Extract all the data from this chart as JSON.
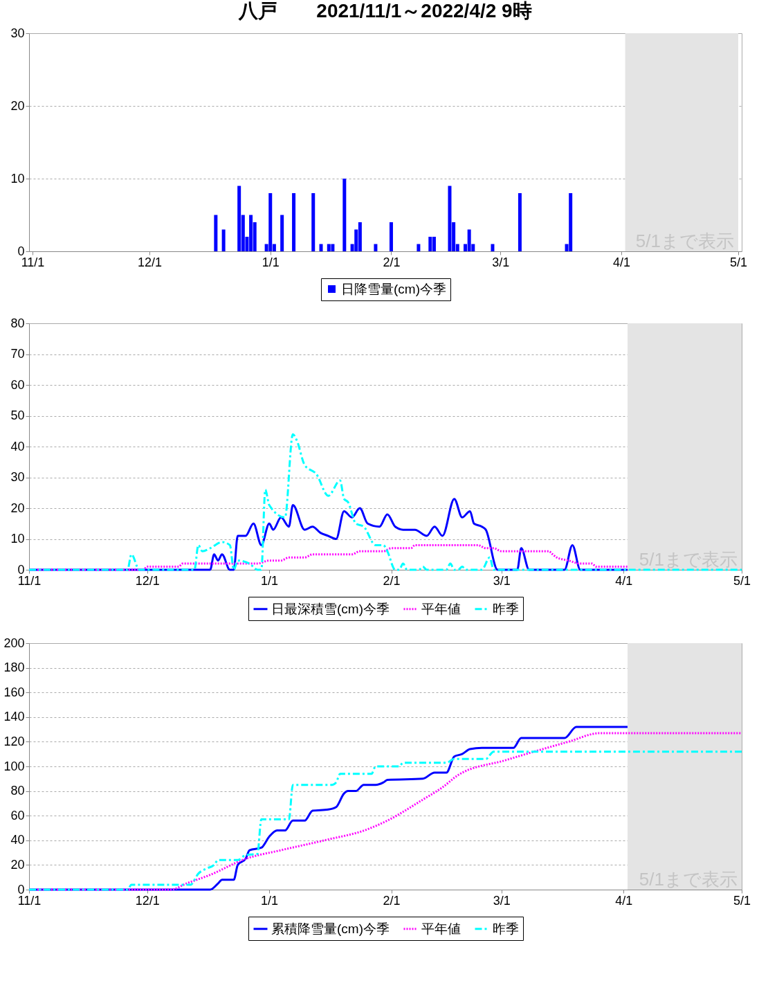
{
  "chart_data": [
    {
      "type": "bar",
      "title": "八戸　　2021/11/1～2022/4/2 9時",
      "xlim": [
        "2021-11-01",
        "2022-05-01"
      ],
      "xticks": [
        {
          "value": "2021-11-01",
          "label": "11/1"
        },
        {
          "value": "2021-12-01",
          "label": "12/1"
        },
        {
          "value": "2022-01-01",
          "label": "1/1"
        },
        {
          "value": "2022-02-01",
          "label": "2/1"
        },
        {
          "value": "2022-03-01",
          "label": "3/1"
        },
        {
          "value": "2022-04-01",
          "label": "4/1"
        },
        {
          "value": "2022-05-01",
          "label": "5/1"
        }
      ],
      "ylim": [
        0,
        30
      ],
      "yticks": [
        0,
        10,
        20,
        30
      ],
      "grid": "y",
      "legend": "bottom",
      "bands": [
        {
          "axis": "x",
          "from": "2022-04-02",
          "to": "2022-05-01",
          "label": "5/1まで表示",
          "color": "#e4e4e4"
        }
      ],
      "series": [
        {
          "name": "日降雪量(cm)今季",
          "color": "#0000ff",
          "x": [
            "2021-12-18",
            "2021-12-20",
            "2021-12-24",
            "2021-12-25",
            "2021-12-26",
            "2021-12-27",
            "2021-12-28",
            "2021-12-31",
            "2022-01-01",
            "2022-01-02",
            "2022-01-04",
            "2022-01-07",
            "2022-01-12",
            "2022-01-14",
            "2022-01-16",
            "2022-01-17",
            "2022-01-20",
            "2022-01-22",
            "2022-01-23",
            "2022-01-24",
            "2022-01-28",
            "2022-02-01",
            "2022-02-08",
            "2022-02-11",
            "2022-02-12",
            "2022-02-16",
            "2022-02-17",
            "2022-02-18",
            "2022-02-20",
            "2022-02-21",
            "2022-02-22",
            "2022-02-27",
            "2022-03-06",
            "2022-03-18",
            "2022-03-19"
          ],
          "values": [
            5,
            3,
            9,
            5,
            2,
            5,
            4,
            1,
            8,
            1,
            5,
            8,
            8,
            1,
            1,
            1,
            10,
            1,
            3,
            4,
            1,
            4,
            1,
            2,
            2,
            9,
            4,
            1,
            1,
            3,
            1,
            1,
            8,
            1,
            8
          ]
        }
      ]
    },
    {
      "type": "line",
      "xlim": [
        "2021-11-01",
        "2022-05-01"
      ],
      "xticks": [
        {
          "value": "2021-11-01",
          "label": "11/1"
        },
        {
          "value": "2021-12-01",
          "label": "12/1"
        },
        {
          "value": "2022-01-01",
          "label": "1/1"
        },
        {
          "value": "2022-02-01",
          "label": "2/1"
        },
        {
          "value": "2022-03-01",
          "label": "3/1"
        },
        {
          "value": "2022-04-01",
          "label": "4/1"
        },
        {
          "value": "2022-05-01",
          "label": "5/1"
        }
      ],
      "ylim": [
        0,
        80
      ],
      "yticks": [
        0,
        10,
        20,
        30,
        40,
        50,
        60,
        70,
        80
      ],
      "grid": "y",
      "legend": "bottom",
      "bands": [
        {
          "axis": "x",
          "from": "2022-04-02",
          "to": "2022-05-01",
          "label": "5/1まで表示",
          "color": "#e4e4e4"
        }
      ],
      "series": [
        {
          "name": "日最深積雪(cm)今季",
          "color": "#0000ff",
          "line_style": "solid",
          "x": [
            "2021-11-01",
            "2021-12-17",
            "2021-12-18",
            "2021-12-19",
            "2021-12-20",
            "2021-12-22",
            "2021-12-23",
            "2021-12-24",
            "2021-12-26",
            "2021-12-28",
            "2021-12-30",
            "2022-01-01",
            "2022-01-02",
            "2022-01-04",
            "2022-01-06",
            "2022-01-07",
            "2022-01-10",
            "2022-01-12",
            "2022-01-14",
            "2022-01-16",
            "2022-01-18",
            "2022-01-20",
            "2022-01-22",
            "2022-01-24",
            "2022-01-26",
            "2022-01-29",
            "2022-01-31",
            "2022-02-02",
            "2022-02-04",
            "2022-02-07",
            "2022-02-10",
            "2022-02-12",
            "2022-02-14",
            "2022-02-17",
            "2022-02-19",
            "2022-02-21",
            "2022-02-22",
            "2022-02-24",
            "2022-02-25",
            "2022-02-28",
            "2022-03-05",
            "2022-03-06",
            "2022-03-08",
            "2022-03-17",
            "2022-03-19",
            "2022-03-21",
            "2022-04-02"
          ],
          "values": [
            0,
            0,
            5,
            3,
            5,
            0,
            0,
            11,
            11,
            15,
            8,
            15,
            13,
            17,
            14,
            21,
            13,
            14,
            12,
            11,
            10,
            19,
            17,
            20,
            15,
            14,
            18,
            14,
            13,
            13,
            11,
            14,
            11,
            23,
            17,
            19,
            15,
            14,
            13,
            0,
            0,
            7,
            0,
            0,
            8,
            0,
            0
          ]
        },
        {
          "name": "平年値",
          "color": "#ff00ff",
          "line_style": "dotted",
          "x": [
            "2021-11-01",
            "2021-11-30",
            "2021-12-01",
            "2021-12-09",
            "2021-12-10",
            "2021-12-29",
            "2022-01-01",
            "2022-01-04",
            "2022-01-06",
            "2022-01-10",
            "2022-01-12",
            "2022-01-22",
            "2022-01-24",
            "2022-01-30",
            "2022-02-01",
            "2022-02-06",
            "2022-02-07",
            "2022-02-23",
            "2022-02-25",
            "2022-02-27",
            "2022-03-01",
            "2022-03-13",
            "2022-03-14",
            "2022-03-15",
            "2022-03-18",
            "2022-03-21",
            "2022-03-24",
            "2022-03-25",
            "2022-04-02"
          ],
          "values": [
            0,
            0,
            1,
            1,
            2,
            2,
            3,
            3,
            4,
            4,
            5,
            5,
            6,
            6,
            7,
            7,
            8,
            8,
            7,
            7,
            6,
            6,
            5,
            4,
            3,
            2,
            2,
            1,
            1
          ]
        },
        {
          "name": "昨季",
          "color": "#00ffff",
          "line_style": "dashed",
          "x": [
            "2021-11-01",
            "2021-11-26",
            "2021-11-27",
            "2021-11-29",
            "2021-12-13",
            "2021-12-14",
            "2021-12-15",
            "2021-12-17",
            "2021-12-20",
            "2021-12-22",
            "2021-12-23",
            "2021-12-24",
            "2021-12-27",
            "2021-12-29",
            "2021-12-30",
            "2021-12-31",
            "2022-01-01",
            "2022-01-05",
            "2022-01-07",
            "2022-01-08",
            "2022-01-10",
            "2022-01-13",
            "2022-01-16",
            "2022-01-19",
            "2022-01-20",
            "2022-01-21",
            "2022-01-23",
            "2022-01-25",
            "2022-01-28",
            "2022-01-30",
            "2022-01-31",
            "2022-02-02",
            "2022-02-03",
            "2022-02-04",
            "2022-02-05",
            "2022-02-08",
            "2022-02-09",
            "2022-02-10",
            "2022-02-15",
            "2022-02-16",
            "2022-02-17",
            "2022-02-18",
            "2022-02-19",
            "2022-02-20",
            "2022-02-24",
            "2022-02-26",
            "2022-02-27",
            "2022-05-01"
          ],
          "values": [
            0,
            0,
            5,
            0,
            0,
            8,
            6,
            7,
            9,
            8,
            0,
            3,
            2,
            0,
            0,
            26,
            21,
            17,
            44,
            42,
            34,
            31,
            24,
            29,
            23,
            22,
            15,
            14,
            8,
            8,
            6,
            0,
            0,
            2,
            0,
            0,
            1,
            0,
            0,
            2,
            0,
            0,
            1,
            0,
            0,
            4,
            0,
            0
          ]
        }
      ]
    },
    {
      "type": "line",
      "xlim": [
        "2021-11-01",
        "2022-05-01"
      ],
      "xticks": [
        {
          "value": "2021-11-01",
          "label": "11/1"
        },
        {
          "value": "2021-12-01",
          "label": "12/1"
        },
        {
          "value": "2022-01-01",
          "label": "1/1"
        },
        {
          "value": "2022-02-01",
          "label": "2/1"
        },
        {
          "value": "2022-03-01",
          "label": "3/1"
        },
        {
          "value": "2022-04-01",
          "label": "4/1"
        },
        {
          "value": "2022-05-01",
          "label": "5/1"
        }
      ],
      "ylim": [
        0,
        200
      ],
      "yticks": [
        0,
        20,
        40,
        60,
        80,
        100,
        120,
        140,
        160,
        180,
        200
      ],
      "grid": "y",
      "legend": "bottom",
      "bands": [
        {
          "axis": "x",
          "from": "2022-04-02",
          "to": "2022-05-01",
          "label": "5/1まで表示",
          "color": "#e4e4e4"
        }
      ],
      "series": [
        {
          "name": "累積降雪量(cm)今季",
          "color": "#0000ff",
          "line_style": "solid",
          "x": [
            "2021-11-01",
            "2021-12-17",
            "2021-12-19",
            "2021-12-20",
            "2021-12-23",
            "2021-12-24",
            "2021-12-26",
            "2021-12-27",
            "2021-12-30",
            "2022-01-01",
            "2022-01-03",
            "2022-01-05",
            "2022-01-07",
            "2022-01-10",
            "2022-01-12",
            "2022-01-16",
            "2022-01-18",
            "2022-01-20",
            "2022-01-21",
            "2022-01-23",
            "2022-01-25",
            "2022-01-28",
            "2022-01-30",
            "2022-01-31",
            "2022-02-09",
            "2022-02-12",
            "2022-02-15",
            "2022-02-17",
            "2022-02-19",
            "2022-02-21",
            "2022-02-24",
            "2022-02-27",
            "2022-03-04",
            "2022-03-06",
            "2022-03-17",
            "2022-03-20",
            "2022-04-02"
          ],
          "values": [
            0,
            0,
            5,
            8,
            8,
            20,
            25,
            32,
            34,
            43,
            48,
            48,
            56,
            56,
            64,
            65,
            67,
            78,
            80,
            80,
            85,
            85,
            87,
            89,
            90,
            95,
            95,
            108,
            110,
            114,
            115,
            115,
            115,
            123,
            123,
            132,
            132
          ]
        },
        {
          "name": "平年値",
          "color": "#ff00ff",
          "line_style": "dotted",
          "x": [
            "2021-11-01",
            "2021-12-07",
            "2021-12-11",
            "2021-12-17",
            "2021-12-26",
            "2022-01-04",
            "2022-01-15",
            "2022-01-26",
            "2022-01-31",
            "2022-02-09",
            "2022-02-14",
            "2022-02-18",
            "2022-03-02",
            "2022-03-18",
            "2022-03-26",
            "2022-05-01"
          ],
          "values": [
            0,
            0,
            5,
            12,
            25,
            32,
            40,
            49,
            56,
            73,
            83,
            93,
            105,
            120,
            127,
            127
          ]
        },
        {
          "name": "昨季",
          "color": "#00ffff",
          "line_style": "dashed",
          "x": [
            "2021-11-01",
            "2021-11-26",
            "2021-11-27",
            "2021-12-12",
            "2021-12-14",
            "2021-12-16",
            "2021-12-18",
            "2021-12-19",
            "2021-12-24",
            "2021-12-26",
            "2021-12-29",
            "2021-12-30",
            "2022-01-06",
            "2022-01-07",
            "2022-01-17",
            "2022-01-18",
            "2022-01-19",
            "2022-01-27",
            "2022-01-28",
            "2022-02-03",
            "2022-02-04",
            "2022-02-15",
            "2022-02-17",
            "2022-02-25",
            "2022-02-27",
            "2022-05-01"
          ],
          "values": [
            0,
            0,
            4,
            4,
            13,
            17,
            20,
            24,
            24,
            28,
            29,
            57,
            57,
            85,
            85,
            87,
            94,
            94,
            100,
            100,
            103,
            103,
            106,
            106,
            112,
            112
          ]
        }
      ]
    }
  ]
}
